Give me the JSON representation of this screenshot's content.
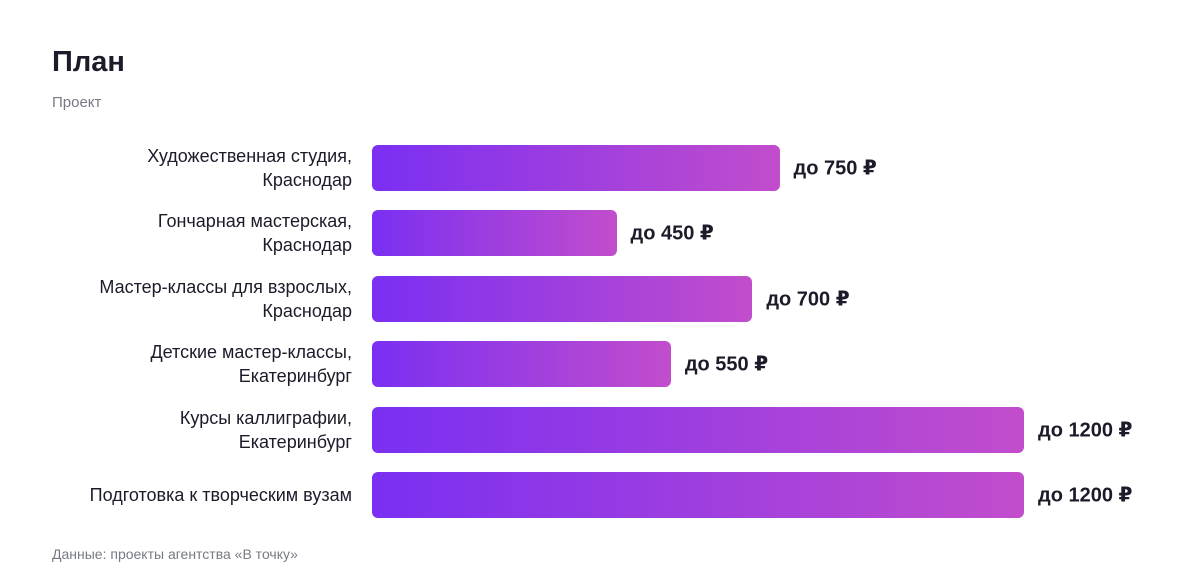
{
  "chart_data": {
    "type": "bar",
    "orientation": "horizontal",
    "title": "План",
    "subtitle": "Проект",
    "categories": [
      "Художественная студия,\nКраснодар",
      "Гончарная мастерская,\nКраснодар",
      "Мастер-классы для взрослых,\nКраснодар",
      "Детские мастер-классы,\nЕкатеринбург",
      "Курсы каллиграфии,\nЕкатеринбург",
      "Подготовка к творческим вузам"
    ],
    "values": [
      750,
      450,
      700,
      550,
      1200,
      1200
    ],
    "value_labels": [
      "до 750 ₽",
      "до 450 ₽",
      "до 700 ₽",
      "до 550 ₽",
      "до 1200 ₽",
      "до 1200 ₽"
    ],
    "gradient": [
      "#7a2ff2",
      "#c24dcc"
    ],
    "source": "Данные: проекты агентства «В точку»"
  }
}
